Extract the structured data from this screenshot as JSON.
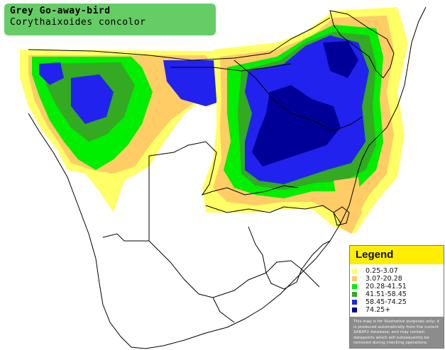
{
  "title": {
    "common_name": "Grey Go-away-bird",
    "scientific_name": "Corythaixoides concolor"
  },
  "legend": {
    "heading": "Legend",
    "classes": [
      {
        "label": "0.25-3.07",
        "color": "#ffff66"
      },
      {
        "label": "3.07-20.28",
        "color": "#ffcc66"
      },
      {
        "label": "20.28-41.51",
        "color": "#00ee00"
      },
      {
        "label": "41.51-58.45",
        "color": "#33aa22"
      },
      {
        "label": "58.45-74.25",
        "color": "#2222ee"
      },
      {
        "label": "74.25+",
        "color": "#000099"
      }
    ],
    "note": "This map is for illustrative purposes only; it is produced automatically from the current SABAP2 database, and may contain datapoints which will subsequently be removed during checking operations."
  },
  "colors": {
    "land": "#ffffff",
    "border": "#000000",
    "title_bg": "#66cc66",
    "legend_heading_bg": "#ffee00"
  }
}
